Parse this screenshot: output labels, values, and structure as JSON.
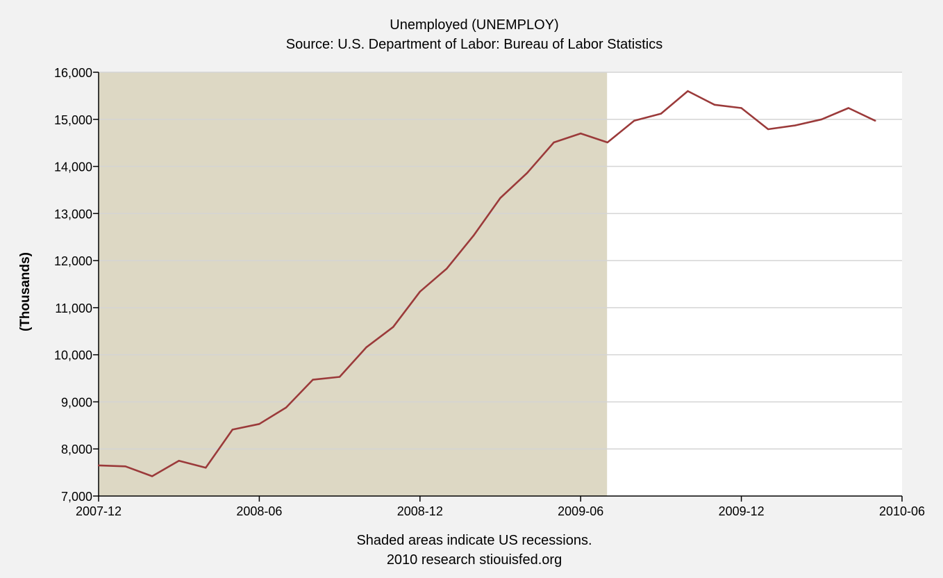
{
  "chart_data": {
    "type": "line",
    "title": "Unemployed (UNEMPLOY)",
    "subtitle": "Source: U.S. Department of Labor: Bureau of Labor Statistics",
    "ylabel": "(Thousands)",
    "xlabel": "",
    "ylim": [
      7000,
      16000
    ],
    "xlim": [
      "2007-12",
      "2010-06"
    ],
    "y_ticks": [
      7000,
      8000,
      9000,
      10000,
      11000,
      12000,
      13000,
      14000,
      15000,
      16000
    ],
    "y_tick_labels": [
      "7,000",
      "8,000",
      "9,000",
      "10,000",
      "11,000",
      "12,000",
      "13,000",
      "14,000",
      "15,000",
      "16,000"
    ],
    "x_ticks": [
      "2007-12",
      "2008-06",
      "2008-12",
      "2009-06",
      "2009-12",
      "2010-06"
    ],
    "grid": "horizontal",
    "line_color": "#9b3a3a",
    "recession_color": "#ddd8c4",
    "recessions": [
      {
        "start": "2007-12",
        "end": "2009-06"
      }
    ],
    "series": [
      {
        "x": [
          "2007-12",
          "2008-01",
          "2008-02",
          "2008-03",
          "2008-04",
          "2008-05",
          "2008-06",
          "2008-07",
          "2008-08",
          "2008-09",
          "2008-10",
          "2008-11",
          "2008-12",
          "2009-01",
          "2009-02",
          "2009-03",
          "2009-04",
          "2009-05",
          "2009-06",
          "2009-07",
          "2009-08",
          "2009-09",
          "2009-10",
          "2009-11",
          "2009-12",
          "2010-01",
          "2010-02",
          "2010-03",
          "2010-04",
          "2010-05"
        ],
        "values": [
          7650,
          7630,
          7420,
          7750,
          7600,
          8410,
          8530,
          8880,
          9470,
          9530,
          10160,
          10590,
          11340,
          11830,
          12530,
          13330,
          13860,
          14510,
          14700,
          14510,
          14970,
          15120,
          15600,
          15310,
          15240,
          14790,
          14870,
          15000,
          15240,
          14970
        ]
      }
    ]
  },
  "footer": {
    "note": "Shaded areas indicate US recessions.",
    "source": "2010 research stiouisfed.org"
  }
}
